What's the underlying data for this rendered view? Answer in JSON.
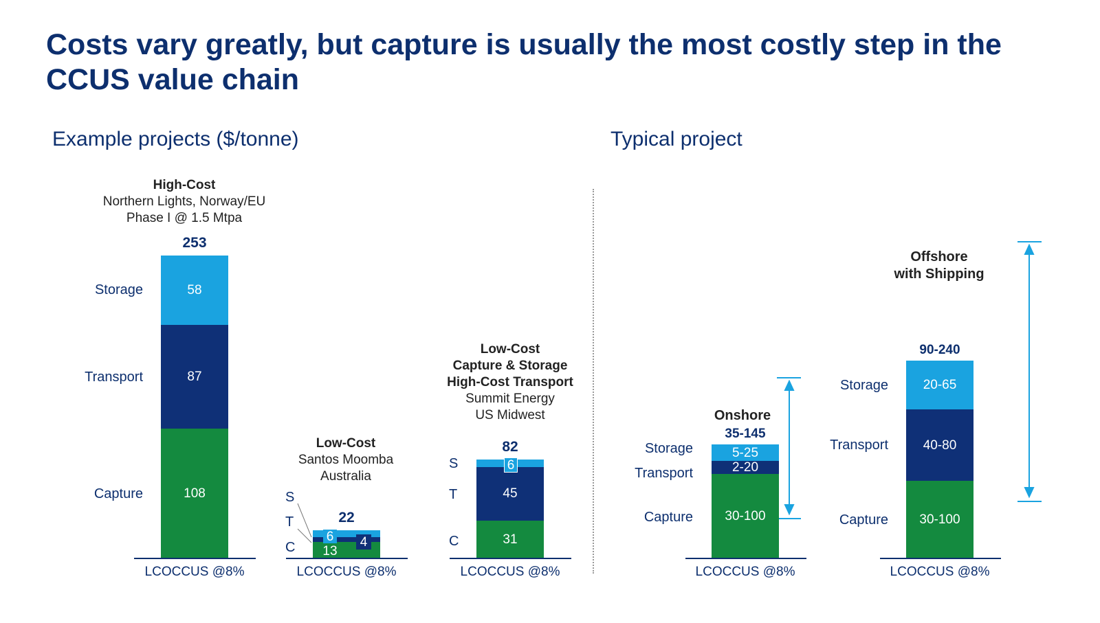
{
  "title": "Costs vary greatly, but capture is usually the most costly step in the CCUS value chain",
  "left_subtitle": "Example projects ($/tonne)",
  "right_subtitle": "Typical project",
  "colors": {
    "storage": "#1aa3e0",
    "transport": "#0f3077",
    "capture": "#148a3f",
    "text": "#0d2f6e"
  },
  "chart_data": [
    {
      "type": "bar",
      "stacked": true,
      "title": "Example projects ($/tonne)",
      "ylabel": "$/tonne",
      "categories": [
        "High-Cost",
        "Low-Cost",
        "Low-Cost Capture & Storage High-Cost Transport"
      ],
      "projects": [
        {
          "heading": "High-Cost",
          "desc": [
            "Northern Lights, Norway/EU",
            "Phase I @ 1.5 Mtpa"
          ],
          "total": "253",
          "xlabel": "LCOCCUS @8%",
          "seg_labels": [
            "Storage",
            "Transport",
            "Capture"
          ],
          "capture": 108,
          "transport": 87,
          "storage": 58
        },
        {
          "heading": "Low-Cost",
          "desc": [
            "Santos Moomba",
            "Australia"
          ],
          "total": "22",
          "xlabel": "LCOCCUS @8%",
          "seg_labels": [
            "S",
            "T",
            "C"
          ],
          "capture": 13,
          "transport": 4,
          "storage": 6
        },
        {
          "heading": "Low-Cost",
          "heading2": "Capture & Storage",
          "heading3": "High-Cost Transport",
          "desc": [
            "Summit Energy",
            "US Midwest"
          ],
          "total": "82",
          "xlabel": "LCOCCUS @8%",
          "seg_labels": [
            "S",
            "T",
            "C"
          ],
          "capture": 31,
          "transport": 45,
          "storage": 6
        }
      ]
    },
    {
      "type": "bar",
      "stacked": true,
      "title": "Typical project",
      "projects": [
        {
          "heading": "Onshore",
          "total": "35-145",
          "xlabel": "LCOCCUS @8%",
          "seg_labels": [
            "Storage",
            "Transport",
            "Capture"
          ],
          "capture": "30-100",
          "transport": "2-20",
          "storage": "5-25"
        },
        {
          "heading": "Offshore",
          "heading2": "with Shipping",
          "total": "90-240",
          "xlabel": "LCOCCUS @8%",
          "seg_labels": [
            "Storage",
            "Transport",
            "Capture"
          ],
          "capture": "30-100",
          "transport": "40-80",
          "storage": "20-65"
        }
      ]
    }
  ]
}
